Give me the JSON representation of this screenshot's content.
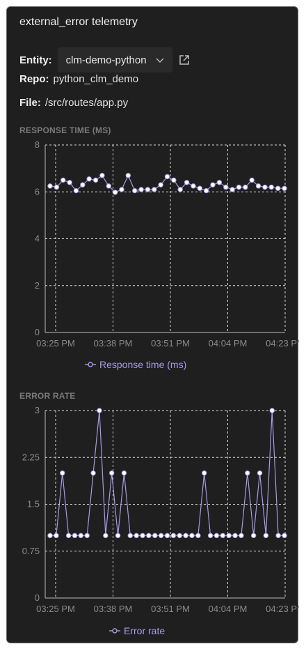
{
  "panel": {
    "title": "external_error telemetry",
    "entity_label": "Entity:",
    "entity_value": "clm-demo-python",
    "repo_label": "Repo:",
    "repo_value": "python_clm_demo",
    "file_label": "File:",
    "file_value": "/src/routes/app.py",
    "icons": {
      "dropdown": "chevron-down-icon",
      "open": "external-link-icon"
    }
  },
  "colors": {
    "background": "#1f1f1f",
    "series": "#a99be8",
    "grid": "#d8d8d8"
  },
  "chart_data": [
    {
      "type": "line",
      "title": "RESPONSE TIME (MS)",
      "x_ticks": [
        "03:25 PM",
        "03:38 PM",
        "03:51 PM",
        "04:04 PM",
        "04:23 PM"
      ],
      "y_ticks": [
        "0",
        "2",
        "4",
        "6",
        "8"
      ],
      "ylim": [
        0,
        8
      ],
      "grid": true,
      "legend_position": "bottom",
      "series": [
        {
          "name": "Response time (ms)",
          "values": [
            6.25,
            6.2,
            6.5,
            6.4,
            6.05,
            6.3,
            6.55,
            6.5,
            6.7,
            6.25,
            5.98,
            6.1,
            6.7,
            6.05,
            6.1,
            6.1,
            6.1,
            6.3,
            6.65,
            6.5,
            6.1,
            6.4,
            6.25,
            6.15,
            6.05,
            6.3,
            6.4,
            6.2,
            6.1,
            6.2,
            6.2,
            6.5,
            6.25,
            6.2,
            6.2,
            6.15,
            6.15
          ]
        }
      ]
    },
    {
      "type": "line",
      "title": "ERROR RATE",
      "x_ticks": [
        "03:25 PM",
        "03:38 PM",
        "03:51 PM",
        "04:04 PM",
        "04:23 PM"
      ],
      "y_ticks": [
        "0",
        "0.75",
        "1.5",
        "2.25",
        "3"
      ],
      "ylim": [
        0,
        3
      ],
      "grid": true,
      "legend_position": "bottom",
      "series": [
        {
          "name": "Error rate",
          "values": [
            1,
            1,
            2,
            1,
            1,
            1,
            1,
            2,
            3,
            1,
            2,
            1,
            2,
            1,
            1,
            1,
            1,
            1,
            1,
            1,
            1,
            1,
            1,
            1,
            1,
            2,
            1,
            1,
            1,
            1,
            1,
            1,
            2,
            1,
            2,
            1,
            3,
            1,
            1
          ]
        }
      ]
    }
  ]
}
